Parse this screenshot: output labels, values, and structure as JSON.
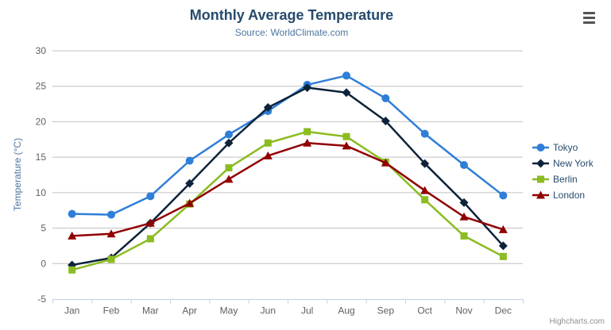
{
  "header": {
    "context_menu_icon": "hamburger",
    "context_menu_tooltip": "Chart context menu"
  },
  "chart_data": {
    "type": "line",
    "title": "Monthly Average Temperature",
    "subtitle": "Source: WorldClimate.com",
    "xlabel": "",
    "ylabel": "Temperature (°C)",
    "credits": "Highcharts.com",
    "categories": [
      "Jan",
      "Feb",
      "Mar",
      "Apr",
      "May",
      "Jun",
      "Jul",
      "Aug",
      "Sep",
      "Oct",
      "Nov",
      "Dec"
    ],
    "series": [
      {
        "name": "Tokyo",
        "color": "#2f7ed8",
        "marker": "circle",
        "values": [
          7.0,
          6.9,
          9.5,
          14.5,
          18.2,
          21.5,
          25.2,
          26.5,
          23.3,
          18.3,
          13.9,
          9.6
        ]
      },
      {
        "name": "New York",
        "color": "#0d233a",
        "marker": "diamond",
        "values": [
          -0.2,
          0.8,
          5.7,
          11.3,
          17.0,
          22.0,
          24.8,
          24.1,
          20.1,
          14.1,
          8.6,
          2.5
        ]
      },
      {
        "name": "Berlin",
        "color": "#8bbc21",
        "marker": "square",
        "values": [
          -0.9,
          0.6,
          3.5,
          8.4,
          13.5,
          17.0,
          18.6,
          17.9,
          14.3,
          9.0,
          3.9,
          1.0
        ]
      },
      {
        "name": "London",
        "color": "#910000",
        "marker": "triangle",
        "values": [
          3.9,
          4.2,
          5.7,
          8.5,
          11.9,
          15.2,
          17.0,
          16.6,
          14.2,
          10.3,
          6.6,
          4.8
        ]
      }
    ],
    "ylim": [
      -5,
      30
    ],
    "ytick_step": 5,
    "grid": true,
    "legend_position": "right",
    "style": {
      "title_color": "#274b6d",
      "subtitle_color": "#4d759e",
      "axis_title_color": "#4d759e",
      "axis_label_color": "#606060",
      "grid_color": "#c0c0c0",
      "axis_line_color": "#c0d0e0",
      "legend_text_color": "#274b6d",
      "credits_color": "#909090"
    }
  }
}
